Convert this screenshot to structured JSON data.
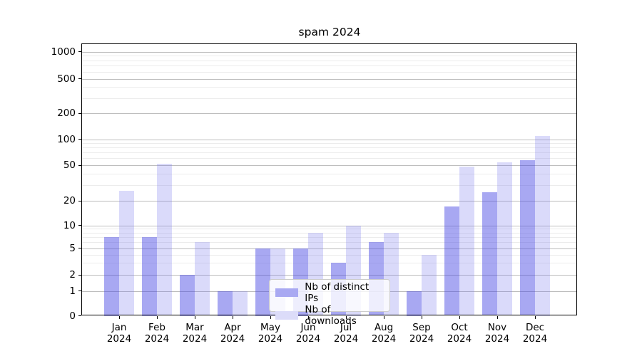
{
  "chart_data": {
    "type": "bar",
    "title": "spam 2024",
    "categories": [
      "Jan",
      "Feb",
      "Mar",
      "Apr",
      "May",
      "Jun",
      "Jul",
      "Aug",
      "Sep",
      "Oct",
      "Nov",
      "Dec"
    ],
    "category_year": "2024",
    "series": [
      {
        "name": "Nb of distinct IPs",
        "color": "rgba(70,70,228,0.47)",
        "color_hex": "#a9a9f2",
        "values": [
          7,
          7,
          2,
          1,
          5,
          5,
          3,
          6,
          1,
          17,
          25,
          57
        ]
      },
      {
        "name": "Nb of downloads",
        "color": "rgba(120,120,235,0.27)",
        "color_hex": "#dcdcf9",
        "values": [
          26,
          52,
          6,
          1,
          5,
          8,
          10,
          8,
          4,
          48,
          54,
          110
        ]
      }
    ],
    "y_axis": {
      "ticks": [
        0,
        1,
        2,
        5,
        10,
        20,
        50,
        100,
        200,
        500,
        1000
      ],
      "scale": "symlog",
      "ylim": [
        0,
        1300
      ]
    },
    "x_axis": {
      "label": ""
    },
    "legend": {
      "position": "lower center"
    },
    "grid": {
      "major": true,
      "minor": true
    },
    "colors": {
      "axis": "#000000",
      "major_grid": "#bdbdbd",
      "minor_grid": "#ececec"
    }
  }
}
